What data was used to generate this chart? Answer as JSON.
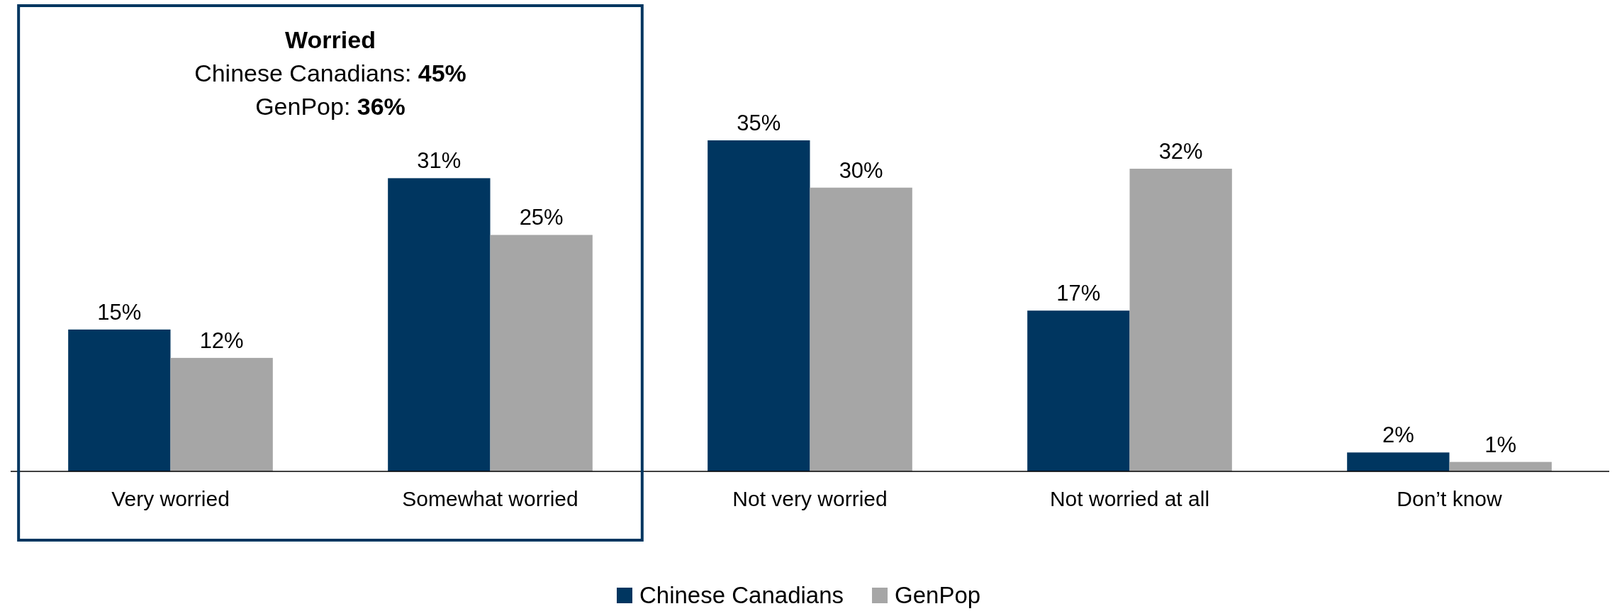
{
  "chart_data": {
    "type": "bar",
    "categories": [
      "Very worried",
      "Somewhat worried",
      "Not very worried",
      "Not worried at all",
      "Don’t know"
    ],
    "series": [
      {
        "name": "Chinese Canadians",
        "color": "#003660",
        "values": [
          15,
          31,
          35,
          17,
          2
        ],
        "value_labels": [
          "15%",
          "31%",
          "35%",
          "17%",
          "2%"
        ]
      },
      {
        "name": "GenPop",
        "color": "#a6a6a6",
        "values": [
          12,
          25,
          30,
          32,
          1
        ],
        "value_labels": [
          "12%",
          "25%",
          "30%",
          "32%",
          "1%"
        ]
      }
    ],
    "tick_labels": "x",
    "legend": "bottom",
    "annotations": [
      "Worried",
      "Chinese Canadians: 45%",
      "GenPop: 36%"
    ]
  }
}
